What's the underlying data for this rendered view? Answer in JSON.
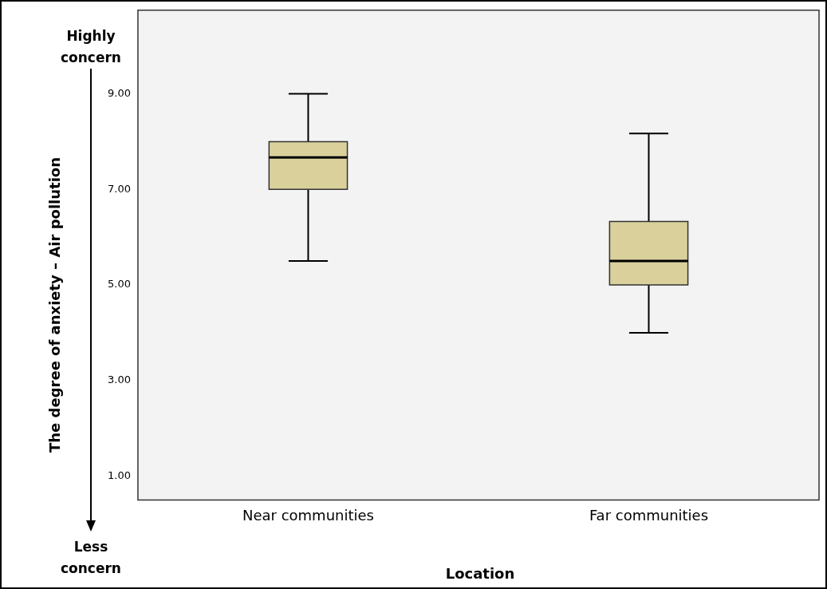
{
  "chart_data": {
    "type": "box",
    "xlabel": "Location",
    "ylabel": "The degree of anxiety – Air pollution",
    "categories": [
      "Near communities",
      "Far communities"
    ],
    "color": "#d9d09c",
    "boxes": [
      {
        "low": 5.5,
        "q1": 7.0,
        "median": 7.67,
        "q3": 8.0,
        "high": 9.0
      },
      {
        "low": 4.0,
        "q1": 5.0,
        "median": 5.5,
        "q3": 6.33,
        "high": 8.17
      }
    ],
    "ylim": [
      0.5,
      10.75
    ],
    "yticks": [
      {
        "value": 1,
        "label": "1.00"
      },
      {
        "value": 3,
        "label": "3.00"
      },
      {
        "value": 5,
        "label": "5.00"
      },
      {
        "value": 7,
        "label": "7.00"
      },
      {
        "value": 9,
        "label": "9.00"
      }
    ],
    "annotations": [
      "Highly concern",
      "Less concern"
    ]
  }
}
